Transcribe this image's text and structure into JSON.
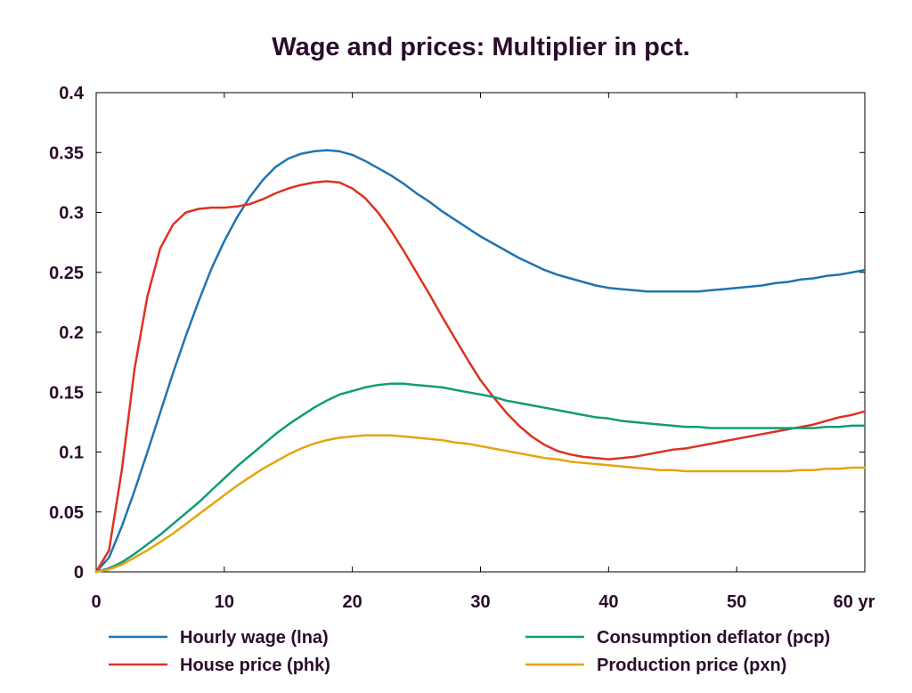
{
  "chart_data": {
    "type": "line",
    "title": "Wage and prices: Multiplier in pct.",
    "xlabel": "",
    "ylabel": "",
    "x_unit": "yr",
    "xlim": [
      0,
      60
    ],
    "ylim": [
      0,
      0.4
    ],
    "x_ticks": [
      0,
      10,
      20,
      30,
      40,
      50,
      60
    ],
    "x_tick_labels": [
      "0",
      "10",
      "20",
      "30",
      "40",
      "50",
      "60 yr"
    ],
    "y_ticks": [
      0,
      0.05,
      0.1,
      0.15,
      0.2,
      0.25,
      0.3,
      0.35,
      0.4
    ],
    "y_tick_labels": [
      "0",
      "0.05",
      "0.1",
      "0.15",
      "0.2",
      "0.25",
      "0.3",
      "0.35",
      "0.4"
    ],
    "grid": false,
    "legend_position": "bottom",
    "x": [
      0,
      1,
      2,
      3,
      4,
      5,
      6,
      7,
      8,
      9,
      10,
      11,
      12,
      13,
      14,
      15,
      16,
      17,
      18,
      19,
      20,
      21,
      22,
      23,
      24,
      25,
      26,
      27,
      28,
      29,
      30,
      31,
      32,
      33,
      34,
      35,
      36,
      37,
      38,
      39,
      40,
      41,
      42,
      43,
      44,
      45,
      46,
      47,
      48,
      49,
      50,
      51,
      52,
      53,
      54,
      55,
      56,
      57,
      58,
      59,
      60
    ],
    "series": [
      {
        "name": "Hourly wage (lna)",
        "color": "#1f74b1",
        "values": [
          0,
          0.012,
          0.038,
          0.068,
          0.1,
          0.133,
          0.166,
          0.197,
          0.226,
          0.253,
          0.276,
          0.296,
          0.313,
          0.327,
          0.338,
          0.345,
          0.349,
          0.351,
          0.352,
          0.351,
          0.348,
          0.343,
          0.337,
          0.331,
          0.324,
          0.316,
          0.309,
          0.301,
          0.294,
          0.287,
          0.28,
          0.274,
          0.268,
          0.262,
          0.257,
          0.252,
          0.248,
          0.245,
          0.242,
          0.239,
          0.237,
          0.236,
          0.235,
          0.234,
          0.234,
          0.234,
          0.234,
          0.234,
          0.235,
          0.236,
          0.237,
          0.238,
          0.239,
          0.241,
          0.242,
          0.244,
          0.245,
          0.247,
          0.248,
          0.25,
          0.252
        ]
      },
      {
        "name": "House price (phk)",
        "color": "#dc3223",
        "values": [
          0,
          0.018,
          0.085,
          0.17,
          0.23,
          0.27,
          0.29,
          0.3,
          0.303,
          0.304,
          0.304,
          0.305,
          0.307,
          0.311,
          0.316,
          0.32,
          0.323,
          0.325,
          0.326,
          0.325,
          0.32,
          0.312,
          0.3,
          0.285,
          0.268,
          0.25,
          0.232,
          0.213,
          0.195,
          0.177,
          0.16,
          0.146,
          0.133,
          0.122,
          0.113,
          0.106,
          0.101,
          0.098,
          0.096,
          0.095,
          0.094,
          0.095,
          0.096,
          0.098,
          0.1,
          0.102,
          0.103,
          0.105,
          0.107,
          0.109,
          0.111,
          0.113,
          0.115,
          0.117,
          0.119,
          0.121,
          0.123,
          0.126,
          0.129,
          0.131,
          0.134
        ]
      },
      {
        "name": "Consumption deflator (pcp)",
        "color": "#109c76",
        "values": [
          0,
          0.003,
          0.008,
          0.015,
          0.023,
          0.031,
          0.04,
          0.049,
          0.058,
          0.068,
          0.078,
          0.088,
          0.097,
          0.106,
          0.115,
          0.123,
          0.13,
          0.137,
          0.143,
          0.148,
          0.151,
          0.154,
          0.156,
          0.157,
          0.157,
          0.156,
          0.155,
          0.154,
          0.152,
          0.15,
          0.148,
          0.146,
          0.143,
          0.141,
          0.139,
          0.137,
          0.135,
          0.133,
          0.131,
          0.129,
          0.128,
          0.126,
          0.125,
          0.124,
          0.123,
          0.122,
          0.121,
          0.121,
          0.12,
          0.12,
          0.12,
          0.12,
          0.12,
          0.12,
          0.12,
          0.12,
          0.12,
          0.121,
          0.121,
          0.122,
          0.122
        ]
      },
      {
        "name": "Production price (pxn)",
        "color": "#e6a410",
        "values": [
          0,
          0.002,
          0.006,
          0.012,
          0.018,
          0.025,
          0.032,
          0.04,
          0.048,
          0.056,
          0.064,
          0.072,
          0.079,
          0.086,
          0.092,
          0.098,
          0.103,
          0.107,
          0.11,
          0.112,
          0.113,
          0.114,
          0.114,
          0.114,
          0.113,
          0.112,
          0.111,
          0.11,
          0.108,
          0.107,
          0.105,
          0.103,
          0.101,
          0.099,
          0.097,
          0.095,
          0.094,
          0.092,
          0.091,
          0.09,
          0.089,
          0.088,
          0.087,
          0.086,
          0.085,
          0.085,
          0.084,
          0.084,
          0.084,
          0.084,
          0.084,
          0.084,
          0.084,
          0.084,
          0.084,
          0.085,
          0.085,
          0.086,
          0.086,
          0.087,
          0.087
        ]
      }
    ]
  }
}
